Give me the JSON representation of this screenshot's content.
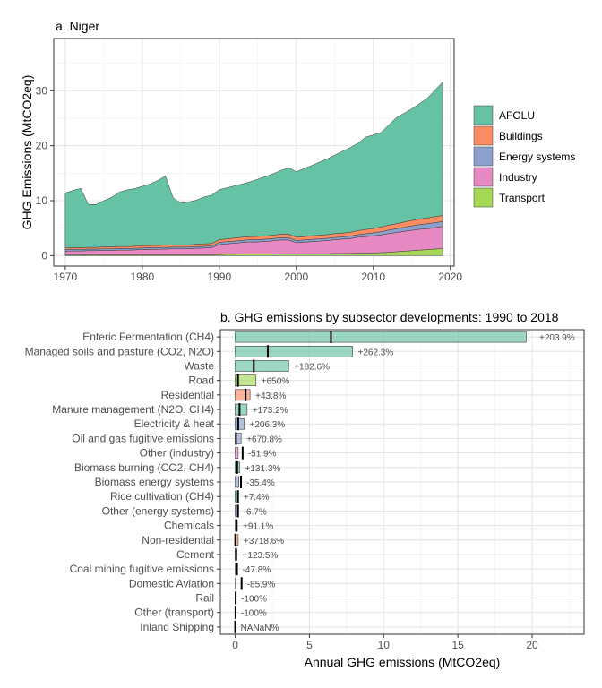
{
  "chart_data": [
    {
      "type": "area",
      "stacked": true,
      "title": "a. Niger",
      "ylabel": "GHG Emissions (MtCO2eq)",
      "xlabel": "",
      "x_ticks": [
        1970,
        1980,
        1990,
        2000,
        2010,
        2020
      ],
      "y_ticks": [
        0,
        10,
        20,
        30
      ],
      "xlim": [
        1968.5,
        2020.5
      ],
      "ylim": [
        -1.9,
        39.5
      ],
      "grid": true,
      "legend_position": "right",
      "x": [
        1970,
        1971,
        1972,
        1973,
        1974,
        1975,
        1976,
        1977,
        1978,
        1979,
        1980,
        1981,
        1982,
        1983,
        1984,
        1985,
        1986,
        1987,
        1988,
        1989,
        1990,
        1991,
        1992,
        1993,
        1994,
        1995,
        1996,
        1997,
        1998,
        1999,
        2000,
        2001,
        2002,
        2003,
        2004,
        2005,
        2006,
        2007,
        2008,
        2009,
        2010,
        2011,
        2012,
        2013,
        2014,
        2015,
        2016,
        2017,
        2018,
        2019
      ],
      "series": [
        {
          "name": "Transport",
          "color": "#a6d854",
          "values": [
            0.15,
            0.15,
            0.15,
            0.15,
            0.15,
            0.15,
            0.15,
            0.15,
            0.15,
            0.15,
            0.15,
            0.15,
            0.15,
            0.15,
            0.15,
            0.15,
            0.15,
            0.15,
            0.15,
            0.15,
            0.2,
            0.25,
            0.25,
            0.3,
            0.3,
            0.3,
            0.3,
            0.3,
            0.35,
            0.35,
            0.35,
            0.35,
            0.35,
            0.35,
            0.35,
            0.4,
            0.4,
            0.4,
            0.45,
            0.45,
            0.5,
            0.55,
            0.6,
            0.7,
            0.8,
            0.9,
            1.0,
            1.1,
            1.2,
            1.3
          ]
        },
        {
          "name": "Industry",
          "color": "#e78ac3",
          "values": [
            0.65,
            0.7,
            0.7,
            0.75,
            0.75,
            0.8,
            0.8,
            0.85,
            0.85,
            0.9,
            0.95,
            1.0,
            1.0,
            1.05,
            1.1,
            1.1,
            1.1,
            1.2,
            1.25,
            1.3,
            1.8,
            1.9,
            2.0,
            2.1,
            2.2,
            2.2,
            2.3,
            2.4,
            2.5,
            2.5,
            2.0,
            2.1,
            2.2,
            2.3,
            2.4,
            2.5,
            2.6,
            2.7,
            2.9,
            3.0,
            3.1,
            3.2,
            3.4,
            3.5,
            3.6,
            3.7,
            3.8,
            3.8,
            3.9,
            4.0
          ]
        },
        {
          "name": "Energy systems",
          "color": "#8da0cb",
          "values": [
            0.3,
            0.3,
            0.3,
            0.3,
            0.3,
            0.3,
            0.3,
            0.3,
            0.3,
            0.3,
            0.3,
            0.3,
            0.3,
            0.3,
            0.3,
            0.3,
            0.3,
            0.3,
            0.3,
            0.3,
            0.4,
            0.4,
            0.4,
            0.4,
            0.4,
            0.4,
            0.4,
            0.4,
            0.4,
            0.4,
            0.4,
            0.4,
            0.4,
            0.4,
            0.4,
            0.4,
            0.4,
            0.45,
            0.45,
            0.5,
            0.55,
            0.6,
            0.65,
            0.7,
            0.75,
            0.8,
            0.85,
            0.9,
            0.9,
            0.9
          ]
        },
        {
          "name": "Buildings",
          "color": "#fc8d62",
          "values": [
            0.3,
            0.3,
            0.3,
            0.3,
            0.3,
            0.35,
            0.35,
            0.35,
            0.35,
            0.35,
            0.4,
            0.4,
            0.4,
            0.4,
            0.4,
            0.4,
            0.4,
            0.45,
            0.45,
            0.45,
            0.5,
            0.5,
            0.55,
            0.55,
            0.55,
            0.6,
            0.6,
            0.6,
            0.65,
            0.65,
            0.6,
            0.6,
            0.65,
            0.65,
            0.65,
            0.7,
            0.7,
            0.7,
            0.75,
            0.8,
            0.8,
            0.85,
            0.9,
            0.9,
            0.95,
            1.0,
            1.0,
            1.05,
            1.1,
            1.1
          ]
        },
        {
          "name": "AFOLU",
          "color": "#66c2a5",
          "values": [
            10.0,
            10.4,
            10.8,
            7.8,
            7.8,
            8.4,
            9.0,
            9.9,
            10.3,
            10.5,
            10.8,
            11.2,
            11.8,
            12.6,
            8.6,
            7.6,
            7.8,
            8.0,
            8.5,
            8.8,
            9.1,
            9.3,
            9.5,
            9.7,
            10.0,
            10.4,
            10.8,
            11.2,
            11.6,
            12.1,
            11.9,
            12.4,
            12.8,
            13.3,
            13.8,
            14.3,
            14.9,
            15.4,
            15.9,
            16.8,
            17.0,
            17.2,
            18.2,
            19.3,
            19.8,
            20.3,
            21.0,
            21.8,
            23.0,
            24.3
          ]
        }
      ]
    },
    {
      "type": "bar",
      "orientation": "horizontal",
      "title": "b. GHG emissions by subsector developments: 1990 to 2018",
      "xlabel": "Annual GHG emissions (MtCO2eq)",
      "ylabel": "",
      "x_ticks": [
        0,
        5,
        10,
        15,
        20
      ],
      "xlim": [
        -1.0,
        23.5
      ],
      "grid": true,
      "categories": [
        "Enteric Fermentation (CH4)",
        "Managed soils and pasture (CO2, N2O)",
        "Waste",
        "Road",
        "Residential",
        "Manure management (N2O, CH4)",
        "Electricity & heat",
        "Oil and gas fugitive emissions",
        "Other (industry)",
        "Biomass burning (CO2, CH4)",
        "Biomass energy systems",
        "Rice cultivation (CH4)",
        "Other (energy systems)",
        "Chemicals",
        "Non-residential",
        "Cement",
        "Coal mining fugitive emissions",
        "Domestic Aviation",
        "Rail",
        "Other (transport)",
        "Inland Shipping"
      ],
      "values_2018": [
        19.6,
        7.9,
        3.6,
        1.4,
        1.0,
        0.8,
        0.6,
        0.4,
        0.2,
        0.3,
        0.25,
        0.2,
        0.18,
        0.15,
        0.2,
        0.12,
        0.06,
        0.06,
        0.0,
        0.0,
        0.0
      ],
      "values_1990": [
        6.45,
        2.2,
        1.25,
        0.19,
        0.7,
        0.29,
        0.2,
        0.05,
        0.5,
        0.13,
        0.39,
        0.19,
        0.19,
        0.08,
        0.005,
        0.05,
        0.12,
        0.43,
        0.03,
        0.02,
        0.0
      ],
      "change_labels": [
        "+203.9%",
        "+262.3%",
        "+182.6%",
        "+650%",
        "+43.8%",
        "+173.2%",
        "+206.3%",
        "+670.8%",
        "-51.9%",
        "+131.3%",
        "-35.4%",
        "+7.4%",
        "-6.7%",
        "+91.1%",
        "+3718.6%",
        "+123.5%",
        "-47.8%",
        "-85.9%",
        "-100%",
        "-100%",
        "NANaN%"
      ],
      "sector": [
        "AFOLU",
        "AFOLU",
        "AFOLU",
        "Transport",
        "Buildings",
        "AFOLU",
        "Energy systems",
        "Energy systems",
        "Industry",
        "AFOLU",
        "Energy systems",
        "AFOLU",
        "Energy systems",
        "Industry",
        "Buildings",
        "Industry",
        "Energy systems",
        "Transport",
        "Transport",
        "Transport",
        "Transport"
      ]
    }
  ]
}
